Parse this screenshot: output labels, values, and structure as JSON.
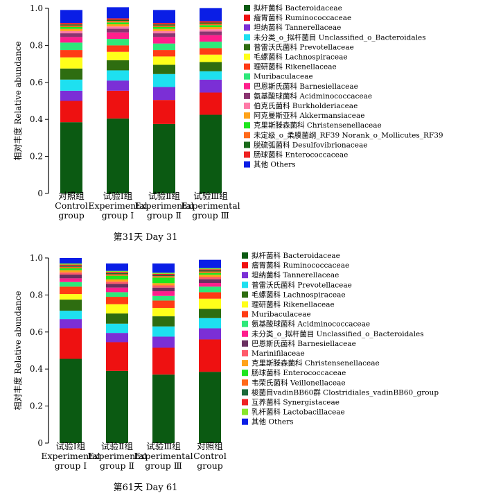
{
  "chart_data": [
    {
      "type": "bar",
      "stacked": true,
      "title": "第31天 Day 31",
      "ylabel": "相对丰度 Relative abundance",
      "ylim": [
        0,
        1.0
      ],
      "yticks": [
        "0",
        "0.2",
        "0.4",
        "0.6",
        "0.8",
        "1.0"
      ],
      "categories": [
        [
          "对照组",
          "Control",
          "group"
        ],
        [
          "试验Ⅰ组",
          "Experimental",
          "group Ⅰ"
        ],
        [
          "试验Ⅱ组",
          "Experimental",
          "group Ⅱ"
        ],
        [
          "试验Ⅲ组",
          "Experimental",
          "group Ⅲ"
        ]
      ],
      "series": [
        {
          "name": "拟杆菌科 Bacteroidaceae",
          "color": "#0b5a12",
          "values": [
            0.385,
            0.405,
            0.375,
            0.425
          ]
        },
        {
          "name": "瘤胃菌科 Ruminococcaceae",
          "color": "#ee1111",
          "values": [
            0.115,
            0.15,
            0.13,
            0.12
          ]
        },
        {
          "name": "坦纳菌科 Tannerellaceae",
          "color": "#7b2fd6",
          "values": [
            0.055,
            0.055,
            0.07,
            0.07
          ]
        },
        {
          "name": "未分类_o_拟杆菌目 Unclassified_o_Bacteroidales",
          "color": "#1ee0f0",
          "values": [
            0.06,
            0.055,
            0.07,
            0.045
          ]
        },
        {
          "name": "普雷沃氏菌科 Prevotellaceae",
          "color": "#2e6d10",
          "values": [
            0.06,
            0.055,
            0.05,
            0.05
          ]
        },
        {
          "name": "毛螺菌科 Lachnospiraceae",
          "color": "#ffff1a",
          "values": [
            0.06,
            0.045,
            0.045,
            0.04
          ]
        },
        {
          "name": "理研菌科 Rikenellaceae",
          "color": "#ff3b15",
          "values": [
            0.04,
            0.035,
            0.035,
            0.035
          ]
        },
        {
          "name": "Muribaculaceae",
          "color": "#2ee87a",
          "values": [
            0.04,
            0.035,
            0.035,
            0.035
          ]
        },
        {
          "name": "巴恩斯氏菌科 Barnesiellaceae",
          "color": "#ff1e8c",
          "values": [
            0.03,
            0.035,
            0.035,
            0.035
          ]
        },
        {
          "name": "氨基酸球菌科 Acidminococcaceae",
          "color": "#8a3470",
          "values": [
            0.02,
            0.02,
            0.02,
            0.02
          ]
        },
        {
          "name": "伯克氏菌科 Burkholderiaceae",
          "color": "#ff7aa8",
          "values": [
            0.012,
            0.012,
            0.012,
            0.012
          ]
        },
        {
          "name": "阿克曼斯亚科 Akkermansiaceae",
          "color": "#ffa31a",
          "values": [
            0.012,
            0.012,
            0.012,
            0.012
          ]
        },
        {
          "name": "克里斯滕森菌科 Christensenellaceae",
          "color": "#1ee61e",
          "values": [
            0.01,
            0.01,
            0.01,
            0.01
          ]
        },
        {
          "name": "未定级_o_柔膜菌纲_RF39 Norank_o_Mollicutes_RF39",
          "color": "#ff6a1a",
          "values": [
            0.008,
            0.008,
            0.008,
            0.008
          ]
        },
        {
          "name": "脱硫弧菌科 Desulfovibrionaceae",
          "color": "#1a6a1a",
          "values": [
            0.006,
            0.006,
            0.006,
            0.006
          ]
        },
        {
          "name": "肠球菌科 Enterococcaceae",
          "color": "#ee2222",
          "values": [
            0.008,
            0.008,
            0.008,
            0.008
          ]
        },
        {
          "name": "其他 Others",
          "color": "#0a1ee6",
          "values": [
            0.07,
            0.06,
            0.07,
            0.07
          ]
        }
      ]
    },
    {
      "type": "bar",
      "stacked": true,
      "title": "第61天 Day 61",
      "ylabel": "相对丰度 Relative abundance",
      "ylim": [
        0,
        1.0
      ],
      "yticks": [
        "0",
        "0.2",
        "0.4",
        "0.6",
        "0.8",
        "1.0"
      ],
      "categories": [
        [
          "试验Ⅰ组",
          "Experimental",
          "group Ⅰ"
        ],
        [
          "试验Ⅱ组",
          "Experimental",
          "group Ⅱ"
        ],
        [
          "试验Ⅲ组",
          "Experimental",
          "group Ⅲ"
        ],
        [
          "对照组",
          "Control",
          "group"
        ]
      ],
      "series": [
        {
          "name": "拟杆菌科 Bacteroidaceae",
          "color": "#0b5a12",
          "values": [
            0.455,
            0.39,
            0.37,
            0.385
          ]
        },
        {
          "name": "瘤胃菌科 Ruminococcaceae",
          "color": "#ee1111",
          "values": [
            0.165,
            0.155,
            0.145,
            0.175
          ]
        },
        {
          "name": "坦纳菌科 Tannerellaceae",
          "color": "#7b2fd6",
          "values": [
            0.05,
            0.05,
            0.06,
            0.06
          ]
        },
        {
          "name": "普雷沃氏菌科 Prevotellaceae",
          "color": "#1ee0f0",
          "values": [
            0.045,
            0.05,
            0.055,
            0.055
          ]
        },
        {
          "name": "毛螺菌科 Lachnospiraceae",
          "color": "#2e6d10",
          "values": [
            0.06,
            0.055,
            0.055,
            0.05
          ]
        },
        {
          "name": "理研菌科 Rikenellaceae",
          "color": "#ffff1a",
          "values": [
            0.03,
            0.05,
            0.045,
            0.055
          ]
        },
        {
          "name": "Muribaculaceae",
          "color": "#ff3b15",
          "values": [
            0.04,
            0.04,
            0.04,
            0.035
          ]
        },
        {
          "name": "氨基酸球菌科 Acidminococcaceae",
          "color": "#2ee87a",
          "values": [
            0.025,
            0.025,
            0.025,
            0.03
          ]
        },
        {
          "name": "未分类_o_拟杆菌目 Unclassified_o_Bacteroidales",
          "color": "#ff1e8c",
          "values": [
            0.02,
            0.025,
            0.025,
            0.02
          ]
        },
        {
          "name": "巴恩斯氏菌科 Barnesiellaceae",
          "color": "#6a3060",
          "values": [
            0.02,
            0.02,
            0.02,
            0.02
          ]
        },
        {
          "name": "Marinifilaceae",
          "color": "#ff5a6a",
          "values": [
            0.012,
            0.012,
            0.012,
            0.012
          ]
        },
        {
          "name": "克里斯滕森菌科 Christensenellaceae",
          "color": "#ffa31a",
          "values": [
            0.012,
            0.012,
            0.012,
            0.012
          ]
        },
        {
          "name": "肠球菌科 Enterococcaceae",
          "color": "#1ee61e",
          "values": [
            0.01,
            0.02,
            0.03,
            0.01
          ]
        },
        {
          "name": "韦荣氏菌科 Veillonellaceae",
          "color": "#ff6a1a",
          "values": [
            0.008,
            0.008,
            0.008,
            0.008
          ]
        },
        {
          "name": "梭菌目vadinBB60群 Clostridiales_vadinBB60_group",
          "color": "#1a6a3a",
          "values": [
            0.006,
            0.006,
            0.006,
            0.006
          ]
        },
        {
          "name": "互养菌科 Synergistaceae",
          "color": "#ee2222",
          "values": [
            0.006,
            0.006,
            0.006,
            0.006
          ]
        },
        {
          "name": "乳杆菌科 Lactobacillaceae",
          "color": "#88e62a",
          "values": [
            0.006,
            0.006,
            0.006,
            0.006
          ]
        },
        {
          "name": "其他 Others",
          "color": "#0a1ee6",
          "values": [
            0.03,
            0.04,
            0.05,
            0.045
          ]
        }
      ]
    }
  ]
}
